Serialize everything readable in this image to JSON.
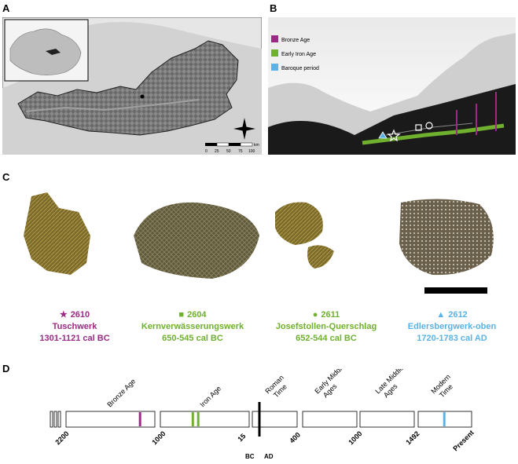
{
  "panels": {
    "a": "A",
    "b": "B",
    "c": "C",
    "d": "D"
  },
  "map": {
    "scale_unit": "km",
    "scale_ticks": [
      "0",
      "25",
      "50",
      "75",
      "100"
    ]
  },
  "legend": [
    {
      "label": "Bronze Age",
      "color": "#9b2a85"
    },
    {
      "label": "Early Iron Age",
      "color": "#6fb02e"
    },
    {
      "label": "Baroque period",
      "color": "#5ab2e6"
    }
  ],
  "samples": [
    {
      "symbol": "★",
      "number": "2610",
      "site": "Tuschwerk",
      "date": "1301-1121 cal BC",
      "color": "#9b2a85",
      "symbol_icon": "star-icon"
    },
    {
      "symbol": "■",
      "number": "2604",
      "site": "Kernverwässerungswerk",
      "date": "650-545 cal BC",
      "color": "#6fb02e",
      "symbol_icon": "square-icon"
    },
    {
      "symbol": "●",
      "number": "2611",
      "site": "Josefstollen-Querschlag",
      "date": "652-544 cal BC",
      "color": "#6fb02e",
      "symbol_icon": "circle-icon"
    },
    {
      "symbol": "▲",
      "number": "2612",
      "site": "Edlersbergwerk-oben",
      "date": "1720-1783 cal AD",
      "color": "#5ab2e6",
      "symbol_icon": "triangle-icon"
    }
  ],
  "timeline": {
    "periods": [
      "Bronze Age",
      "Iron Age",
      "Roman Time",
      "Early Middle Ages",
      "Late Middle Ages",
      "Modern Time"
    ],
    "ticks": [
      "2200",
      "1000",
      "15",
      "400",
      "1000",
      "1492",
      "Present"
    ],
    "era_labels": [
      "BC",
      "AD"
    ],
    "markers": [
      {
        "value": -1200,
        "color": "#9b2a85"
      },
      {
        "value": -640,
        "color": "#6fb02e"
      },
      {
        "value": -580,
        "color": "#6fb02e"
      },
      {
        "value": 1750,
        "color": "#5ab2e6"
      }
    ]
  }
}
